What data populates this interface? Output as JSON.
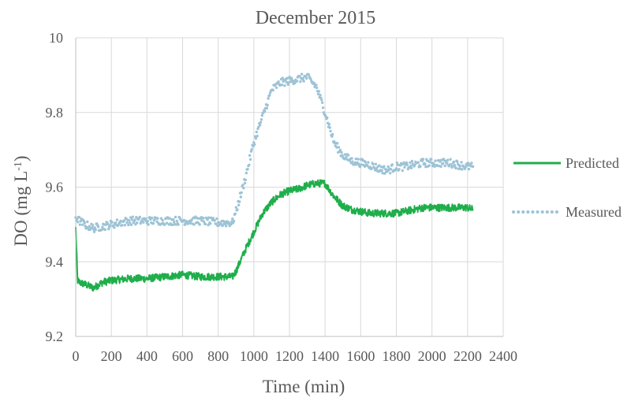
{
  "chart_data": {
    "type": "line",
    "title": "December 2015",
    "xlabel": "Time (min)",
    "ylabel": {
      "prefix": "DO (mg L",
      "superscript": "-1",
      "suffix": ")"
    },
    "xlim": [
      0,
      2400
    ],
    "ylim": [
      9.2,
      10
    ],
    "x_ticks": [
      0,
      200,
      400,
      600,
      800,
      1000,
      1200,
      1400,
      1600,
      1800,
      2000,
      2200,
      2400
    ],
    "y_ticks": [
      9.2,
      9.4,
      9.6,
      9.8,
      10
    ],
    "grid": true,
    "legend_position": "right",
    "series": [
      {
        "name": "Predicted",
        "style": "solid",
        "color": "#1fae4b",
        "x": [
          0,
          10,
          20,
          50,
          100,
          150,
          200,
          300,
          400,
          500,
          600,
          700,
          800,
          880,
          900,
          950,
          1000,
          1050,
          1100,
          1150,
          1200,
          1250,
          1300,
          1350,
          1400,
          1450,
          1500,
          1550,
          1600,
          1650,
          1700,
          1750,
          1800,
          1850,
          1900,
          1950,
          2000,
          2050,
          2100,
          2150,
          2200,
          2230
        ],
        "y": [
          9.49,
          9.35,
          9.345,
          9.34,
          9.33,
          9.345,
          9.35,
          9.355,
          9.355,
          9.36,
          9.365,
          9.36,
          9.36,
          9.36,
          9.375,
          9.43,
          9.48,
          9.53,
          9.56,
          9.58,
          9.59,
          9.595,
          9.605,
          9.61,
          9.61,
          9.575,
          9.55,
          9.54,
          9.535,
          9.53,
          9.53,
          9.53,
          9.53,
          9.535,
          9.54,
          9.545,
          9.545,
          9.545,
          9.545,
          9.545,
          9.545,
          9.54
        ]
      },
      {
        "name": "Measured",
        "style": "dotted",
        "color": "#9dc3d6",
        "x": [
          0,
          20,
          50,
          100,
          150,
          200,
          300,
          400,
          500,
          600,
          700,
          800,
          880,
          900,
          950,
          1000,
          1050,
          1100,
          1150,
          1200,
          1250,
          1300,
          1350,
          1400,
          1450,
          1500,
          1550,
          1600,
          1650,
          1700,
          1750,
          1800,
          1850,
          1900,
          1950,
          2000,
          2050,
          2100,
          2150,
          2200,
          2230
        ],
        "y": [
          9.52,
          9.51,
          9.5,
          9.49,
          9.495,
          9.5,
          9.51,
          9.51,
          9.51,
          9.51,
          9.51,
          9.505,
          9.505,
          9.535,
          9.62,
          9.72,
          9.79,
          9.86,
          9.88,
          9.885,
          9.89,
          9.895,
          9.87,
          9.8,
          9.72,
          9.685,
          9.67,
          9.665,
          9.66,
          9.65,
          9.645,
          9.655,
          9.655,
          9.66,
          9.665,
          9.665,
          9.665,
          9.665,
          9.66,
          9.655,
          9.655
        ]
      }
    ]
  }
}
